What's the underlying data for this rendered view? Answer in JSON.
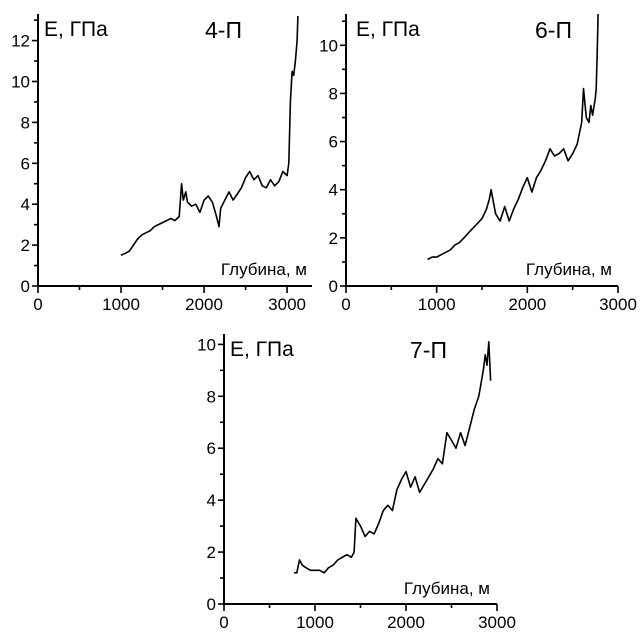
{
  "chart_data": [
    {
      "type": "line",
      "title": "4-П",
      "ylabel": "E, ГПа",
      "xlabel": "Глубина, м",
      "xlim": [
        0,
        3300
      ],
      "ylim": [
        0,
        13.3
      ],
      "xticks": [
        0,
        1000,
        2000,
        3000
      ],
      "xtick_labels": [
        "0",
        "1000",
        "2000",
        "3000"
      ],
      "yticks": [
        0,
        2,
        4,
        6,
        8,
        10,
        12
      ],
      "ytick_labels": [
        "0",
        "2",
        "4",
        "6",
        "8",
        "10",
        "12"
      ],
      "grid": false,
      "series": [
        {
          "x": [
            1000,
            1050,
            1100,
            1150,
            1200,
            1250,
            1300,
            1350,
            1400,
            1450,
            1500,
            1550,
            1600,
            1650,
            1700,
            1730,
            1750,
            1780,
            1800,
            1850,
            1900,
            1950,
            2000,
            2050,
            2100,
            2150,
            2180,
            2200,
            2250,
            2300,
            2350,
            2400,
            2450,
            2500,
            2550,
            2600,
            2650,
            2700,
            2750,
            2800,
            2850,
            2900,
            2950,
            3000,
            3020,
            3040,
            3060,
            3080,
            3100,
            3120,
            3130
          ],
          "y": [
            1.5,
            1.6,
            1.7,
            2.0,
            2.3,
            2.5,
            2.6,
            2.7,
            2.9,
            3.0,
            3.1,
            3.2,
            3.3,
            3.2,
            3.4,
            5.0,
            4.2,
            4.6,
            4.1,
            3.9,
            4.0,
            3.6,
            4.2,
            4.4,
            4.1,
            3.4,
            2.9,
            3.8,
            4.2,
            4.6,
            4.2,
            4.5,
            4.8,
            5.3,
            5.6,
            5.2,
            5.4,
            4.9,
            4.8,
            5.2,
            4.9,
            5.1,
            5.6,
            5.4,
            6.0,
            9.0,
            10.5,
            10.3,
            11.0,
            12.0,
            13.2
          ]
        }
      ]
    },
    {
      "type": "line",
      "title": "6-П",
      "ylabel": "E, ГПа",
      "xlabel": "Глубина, м",
      "xlim": [
        0,
        3000
      ],
      "ylim": [
        0,
        11.3
      ],
      "xticks": [
        0,
        1000,
        2000,
        3000
      ],
      "xtick_labels": [
        "0",
        "1000",
        "2000",
        "3000"
      ],
      "yticks": [
        0,
        2,
        4,
        6,
        8,
        10
      ],
      "ytick_labels": [
        "0",
        "2",
        "4",
        "6",
        "8",
        "10"
      ],
      "grid": false,
      "series": [
        {
          "x": [
            900,
            950,
            1000,
            1050,
            1100,
            1150,
            1200,
            1250,
            1300,
            1350,
            1400,
            1450,
            1500,
            1550,
            1580,
            1600,
            1650,
            1700,
            1750,
            1800,
            1850,
            1900,
            1950,
            2000,
            2050,
            2100,
            2150,
            2200,
            2250,
            2300,
            2350,
            2400,
            2450,
            2500,
            2550,
            2600,
            2620,
            2650,
            2680,
            2700,
            2720,
            2750,
            2760,
            2770,
            2780
          ],
          "y": [
            1.1,
            1.2,
            1.2,
            1.3,
            1.4,
            1.5,
            1.7,
            1.8,
            2.0,
            2.2,
            2.4,
            2.6,
            2.8,
            3.2,
            3.6,
            4.0,
            3.0,
            2.7,
            3.3,
            2.7,
            3.2,
            3.6,
            4.1,
            4.5,
            3.9,
            4.5,
            4.8,
            5.2,
            5.7,
            5.4,
            5.5,
            5.7,
            5.2,
            5.5,
            5.9,
            6.8,
            8.2,
            7.0,
            6.8,
            7.5,
            7.1,
            7.8,
            8.2,
            9.5,
            11.3
          ]
        }
      ]
    },
    {
      "type": "line",
      "title": "7-П",
      "ylabel": "E, ГПа",
      "xlabel": "Глубина, м",
      "xlim": [
        0,
        3000
      ],
      "ylim": [
        0,
        10.4
      ],
      "xticks": [
        0,
        1000,
        2000,
        3000
      ],
      "xtick_labels": [
        "0",
        "1000",
        "2000",
        "3000"
      ],
      "yticks": [
        0,
        2,
        4,
        6,
        8,
        10
      ],
      "ytick_labels": [
        "0",
        "2",
        "4",
        "6",
        "8",
        "10"
      ],
      "grid": false,
      "series": [
        {
          "x": [
            770,
            800,
            830,
            860,
            900,
            950,
            1000,
            1050,
            1100,
            1150,
            1200,
            1250,
            1300,
            1350,
            1400,
            1430,
            1450,
            1500,
            1550,
            1600,
            1650,
            1700,
            1750,
            1800,
            1850,
            1900,
            1950,
            2000,
            2050,
            2100,
            2150,
            2200,
            2250,
            2300,
            2350,
            2400,
            2450,
            2500,
            2550,
            2600,
            2650,
            2700,
            2750,
            2800,
            2850,
            2870,
            2890,
            2910,
            2930
          ],
          "y": [
            1.2,
            1.2,
            1.7,
            1.5,
            1.4,
            1.3,
            1.3,
            1.3,
            1.2,
            1.4,
            1.5,
            1.7,
            1.8,
            1.9,
            1.8,
            2.0,
            3.3,
            3.0,
            2.6,
            2.8,
            2.7,
            3.1,
            3.6,
            3.8,
            3.6,
            4.4,
            4.8,
            5.1,
            4.5,
            4.9,
            4.3,
            4.6,
            4.9,
            5.2,
            5.6,
            5.4,
            6.6,
            6.3,
            6.0,
            6.6,
            6.1,
            6.8,
            7.5,
            8.0,
            9.0,
            9.6,
            9.2,
            10.1,
            8.6
          ]
        }
      ]
    }
  ]
}
